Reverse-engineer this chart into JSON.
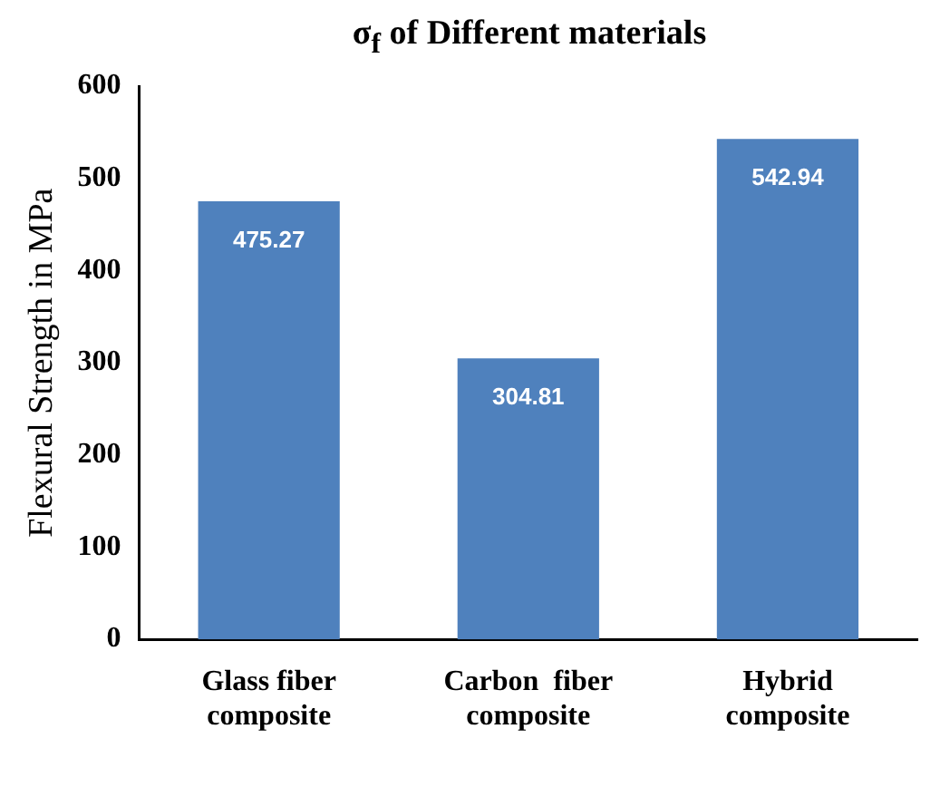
{
  "chart_data": {
    "type": "bar",
    "title": "σ$_{f}$ of Different materials",
    "ylabel": "Flexural Strength in MPa",
    "categories": [
      "Glass fiber composite",
      "Carbon  fiber composite",
      "Hybrid composite"
    ],
    "values": [
      475.27,
      304.81,
      542.94
    ],
    "color": "#4f81bd",
    "data_labels": true,
    "ylim": [
      0,
      600
    ],
    "yticks": [
      0,
      100,
      200,
      300,
      400,
      500,
      600
    ],
    "grid": false,
    "legend": false
  }
}
